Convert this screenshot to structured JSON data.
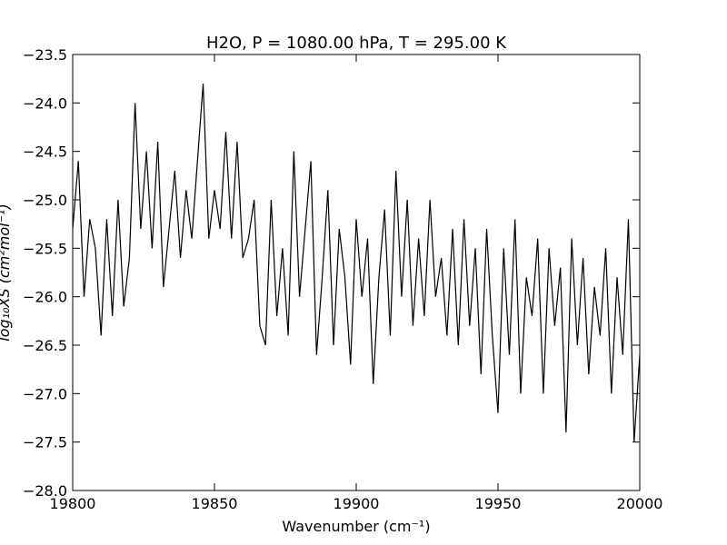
{
  "chart_data": {
    "type": "line",
    "title": "H2O, P = 1080.00 hPa, T = 295.00 K",
    "x_label": "Wavenumber (cm⁻¹)",
    "y_label": "log₁₀XS (cm²mol⁻¹)",
    "color": "#000000",
    "xlim": [
      19800,
      20000
    ],
    "xticks": [
      19800,
      19850,
      19900,
      19950,
      20000
    ],
    "ylim": [
      -28.0,
      -23.5
    ],
    "yticks": [
      {
        "value": -28.0,
        "label": "−28.0"
      },
      {
        "value": -27.5,
        "label": "−27.5"
      },
      {
        "value": -27.0,
        "label": "−27.0"
      },
      {
        "value": -26.5,
        "label": "−26.5"
      },
      {
        "value": -26.0,
        "label": "−26.0"
      },
      {
        "value": -25.5,
        "label": "−25.5"
      },
      {
        "value": -25.0,
        "label": "−25.0"
      },
      {
        "value": -24.5,
        "label": "−24.5"
      },
      {
        "value": -24.0,
        "label": "−24.0"
      },
      {
        "value": -23.5,
        "label": "−23.5"
      }
    ],
    "x": [
      19800,
      19802,
      19804,
      19806,
      19808,
      19810,
      19812,
      19814,
      19816,
      19818,
      19820,
      19822,
      19824,
      19826,
      19828,
      19830,
      19832,
      19834,
      19836,
      19838,
      19840,
      19842,
      19844,
      19846,
      19848,
      19850,
      19852,
      19854,
      19856,
      19858,
      19860,
      19862,
      19864,
      19866,
      19868,
      19870,
      19872,
      19874,
      19876,
      19878,
      19880,
      19882,
      19884,
      19886,
      19888,
      19890,
      19892,
      19894,
      19896,
      19898,
      19900,
      19902,
      19904,
      19906,
      19908,
      19910,
      19912,
      19914,
      19916,
      19918,
      19920,
      19922,
      19924,
      19926,
      19928,
      19930,
      19932,
      19934,
      19936,
      19938,
      19940,
      19942,
      19944,
      19946,
      19948,
      19950,
      19952,
      19954,
      19956,
      19958,
      19960,
      19962,
      19964,
      19966,
      19968,
      19970,
      19972,
      19974,
      19976,
      19978,
      19980,
      19982,
      19984,
      19986,
      19988,
      19990,
      19992,
      19994,
      19996,
      19998,
      20000
    ],
    "values": [
      -25.3,
      -24.6,
      -26.0,
      -25.2,
      -25.5,
      -26.4,
      -25.2,
      -26.2,
      -25.0,
      -26.1,
      -25.6,
      -24.0,
      -25.3,
      -24.5,
      -25.5,
      -24.4,
      -25.9,
      -25.3,
      -24.7,
      -25.6,
      -24.9,
      -25.4,
      -24.6,
      -23.8,
      -25.4,
      -24.9,
      -25.3,
      -24.3,
      -25.4,
      -24.4,
      -25.6,
      -25.4,
      -25.0,
      -26.3,
      -26.5,
      -25.0,
      -26.2,
      -25.5,
      -26.4,
      -24.5,
      -26.0,
      -25.3,
      -24.6,
      -26.6,
      -25.8,
      -24.9,
      -26.5,
      -25.3,
      -25.8,
      -26.7,
      -25.2,
      -26.0,
      -25.4,
      -26.9,
      -25.8,
      -25.1,
      -26.4,
      -24.7,
      -26.0,
      -25.0,
      -26.3,
      -25.4,
      -26.2,
      -25.0,
      -26.0,
      -25.6,
      -26.4,
      -25.3,
      -26.5,
      -25.2,
      -26.3,
      -25.5,
      -26.8,
      -25.3,
      -26.4,
      -27.2,
      -25.5,
      -26.6,
      -25.2,
      -27.0,
      -25.8,
      -26.2,
      -25.4,
      -27.0,
      -25.5,
      -26.3,
      -25.7,
      -27.4,
      -25.4,
      -26.5,
      -25.6,
      -26.8,
      -25.9,
      -26.4,
      -25.5,
      -27.0,
      -25.8,
      -26.6,
      -25.2,
      -27.5,
      -26.6
    ]
  }
}
